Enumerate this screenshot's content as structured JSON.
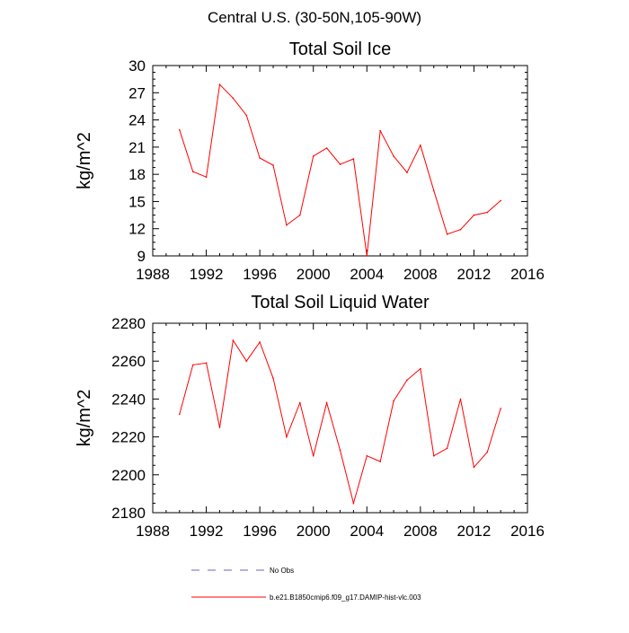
{
  "figure": {
    "title": "Central U.S. (30-50N,105-90W)"
  },
  "chart_data": [
    {
      "type": "line",
      "title": "Total Soil Ice",
      "xlabel": "",
      "ylabel": "kg/m^2",
      "xlim": [
        1988,
        2016
      ],
      "ylim": [
        9,
        30
      ],
      "xticks": [
        1988,
        1992,
        1996,
        2000,
        2004,
        2008,
        2012,
        2016
      ],
      "yticks": [
        9,
        12,
        15,
        18,
        21,
        24,
        27,
        30
      ],
      "x": [
        1990,
        1991,
        1992,
        1993,
        1994,
        1995,
        1996,
        1997,
        1998,
        1999,
        2000,
        2001,
        2002,
        2003,
        2004,
        2005,
        2006,
        2007,
        2008,
        2009,
        2010,
        2011,
        2012,
        2013,
        2014
      ],
      "series": [
        {
          "name": "b.e21.B1850cmip6.f09_g17.DAMIP-hist-vlc.003",
          "color": "#ff0000",
          "values": [
            22.9,
            18.3,
            17.7,
            27.9,
            26.4,
            24.5,
            19.8,
            19.0,
            12.4,
            13.5,
            20.0,
            20.9,
            19.1,
            19.7,
            9.0,
            22.8,
            20.0,
            18.2,
            21.2,
            16.2,
            11.4,
            11.9,
            13.5,
            13.8,
            15.1
          ]
        }
      ],
      "grid": false
    },
    {
      "type": "line",
      "title": "Total Soil Liquid Water",
      "xlabel": "",
      "ylabel": "kg/m^2",
      "xlim": [
        1988,
        2016
      ],
      "ylim": [
        2180,
        2280
      ],
      "xticks": [
        1988,
        1992,
        1996,
        2000,
        2004,
        2008,
        2012,
        2016
      ],
      "yticks": [
        2180,
        2200,
        2220,
        2240,
        2260,
        2280
      ],
      "x": [
        1990,
        1991,
        1992,
        1993,
        1994,
        1995,
        1996,
        1997,
        1998,
        1999,
        2000,
        2001,
        2002,
        2003,
        2004,
        2005,
        2006,
        2007,
        2008,
        2009,
        2010,
        2011,
        2012,
        2013,
        2014
      ],
      "series": [
        {
          "name": "b.e21.B1850cmip6.f09_g17.DAMIP-hist-vlc.003",
          "color": "#ff0000",
          "values": [
            2232,
            2258,
            2259,
            2225,
            2271,
            2260,
            2270,
            2251,
            2220,
            2238,
            2210,
            2238,
            2213,
            2185,
            2210,
            2207,
            2239,
            2250,
            2256,
            2210,
            2214,
            2240,
            2204,
            2212,
            2235
          ]
        }
      ],
      "grid": false
    }
  ],
  "legend": {
    "placement": "bottom",
    "items": [
      {
        "label": "No Obs",
        "color": "#6464c8",
        "style": "dashed"
      },
      {
        "label": "b.e21.B1850cmip6.f09_g17.DAMIP-hist-vlc.003",
        "color": "#ff0000",
        "style": "solid"
      }
    ]
  }
}
